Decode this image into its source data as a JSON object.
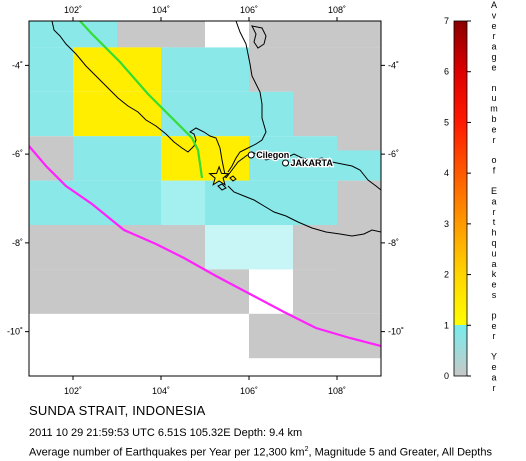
{
  "map": {
    "x_ticks": [
      "102˚",
      "104˚",
      "106˚",
      "108˚"
    ],
    "y_ticks": [
      "-4˚",
      "-6˚",
      "-8˚",
      "-10˚"
    ],
    "places": [
      {
        "name": "Cilegon",
        "lon": 106.05,
        "lat": -6.02
      },
      {
        "name": "JAKARTA",
        "lon": 106.83,
        "lat": -6.2
      }
    ],
    "epicenter": {
      "lon": 105.32,
      "lat": -6.51
    },
    "colors": {
      "gray": "#c8c8c8",
      "cyan_light": "#c8f5f5",
      "cyan_mid": "#a4f0f0",
      "cyan": "#8ae8e8",
      "yellow": "#ffee00",
      "trench": "#ff22ff",
      "fault": "#33dd33",
      "star": "#ffee00"
    }
  },
  "legend": {
    "ticks": [
      "0",
      "1",
      "2",
      "3",
      "4",
      "5",
      "6",
      "7"
    ],
    "label_chars": [
      "A",
      "v",
      "e",
      "r",
      "a",
      "g",
      "e",
      "n",
      "u",
      "m",
      "b",
      "e",
      "r",
      "o",
      "f",
      "E",
      "a",
      "r",
      "t",
      "h",
      "q",
      "u",
      "a",
      "k",
      "e",
      "s",
      "p",
      "e",
      "r",
      "Y",
      "e",
      "a",
      "r"
    ]
  },
  "caption": {
    "title": "SUNDA STRAIT, INDONESIA",
    "details": "2011 10 29 21:59:53 UTC 6.51S 105.32E Depth: 9.4 km",
    "desc_before": "Average number of Earthquakes per Year per 12,300 km",
    "desc_sup": "2",
    "desc_after": ", Magnitude 5 and Greater, All Depths"
  }
}
